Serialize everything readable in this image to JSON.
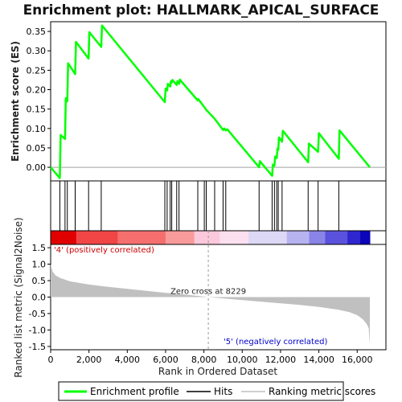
{
  "chart_data": {
    "type": "line",
    "title": "Enrichment plot: HALLMARK_APICAL_SURFACE",
    "colors": {
      "profile": "#00ff00",
      "hits": "#000000",
      "metric_fill": "#c0c0c0",
      "positive": "#ff0000",
      "negative": "#0000ff",
      "zero_line": "#a0a0a0"
    },
    "es_panel": {
      "ylabel": "Enrichment score (ES)",
      "ylim": [
        -0.035,
        0.375
      ],
      "yticks": [
        0.0,
        0.05,
        0.1,
        0.15,
        0.2,
        0.25,
        0.3,
        0.35
      ],
      "ytick_labels": [
        "0.00",
        "0.05",
        "0.10",
        "0.15",
        "0.20",
        "0.25",
        "0.30",
        "0.35"
      ],
      "grid": false,
      "points": [
        [
          0,
          0.0
        ],
        [
          480,
          -0.028
        ],
        [
          520,
          0.083
        ],
        [
          750,
          0.073
        ],
        [
          790,
          0.178
        ],
        [
          870,
          0.17
        ],
        [
          910,
          0.268
        ],
        [
          1280,
          0.24
        ],
        [
          1320,
          0.323
        ],
        [
          1980,
          0.28
        ],
        [
          2020,
          0.348
        ],
        [
          2640,
          0.31
        ],
        [
          2680,
          0.365
        ],
        [
          5960,
          0.168
        ],
        [
          6000,
          0.203
        ],
        [
          6080,
          0.198
        ],
        [
          6120,
          0.215
        ],
        [
          6240,
          0.208
        ],
        [
          6280,
          0.222
        ],
        [
          6320,
          0.218
        ],
        [
          6360,
          0.225
        ],
        [
          6580,
          0.212
        ],
        [
          6620,
          0.222
        ],
        [
          6700,
          0.215
        ],
        [
          6740,
          0.226
        ],
        [
          7680,
          0.172
        ],
        [
          7700,
          0.176
        ],
        [
          8020,
          0.155
        ],
        [
          8120,
          0.148
        ],
        [
          8560,
          0.125
        ],
        [
          9000,
          0.096
        ],
        [
          9060,
          0.1
        ],
        [
          9140,
          0.095
        ],
        [
          9220,
          0.098
        ],
        [
          10880,
          0.0
        ],
        [
          10920,
          0.016
        ],
        [
          11560,
          -0.022
        ],
        [
          11600,
          0.007
        ],
        [
          11680,
          0.004
        ],
        [
          11720,
          0.028
        ],
        [
          11800,
          0.024
        ],
        [
          11840,
          0.048
        ],
        [
          11880,
          0.045
        ],
        [
          11920,
          0.077
        ],
        [
          12080,
          0.066
        ],
        [
          12120,
          0.094
        ],
        [
          13440,
          0.013
        ],
        [
          13480,
          0.061
        ],
        [
          13960,
          0.04
        ],
        [
          14000,
          0.088
        ],
        [
          15040,
          0.022
        ],
        [
          15080,
          0.095
        ],
        [
          16660,
          0.0
        ]
      ]
    },
    "hits": [
      480,
      750,
      870,
      1280,
      1980,
      2640,
      5960,
      6080,
      6240,
      6320,
      6580,
      6700,
      7680,
      8020,
      8120,
      8560,
      9000,
      9140,
      10880,
      11560,
      11680,
      11800,
      11880,
      12080,
      13440,
      13960,
      15040
    ],
    "color_bar": {
      "segments": [
        {
          "to": 0.08,
          "color": "#e00000"
        },
        {
          "to": 0.21,
          "color": "#f04646"
        },
        {
          "to": 0.36,
          "color": "#f56f6f"
        },
        {
          "to": 0.45,
          "color": "#fa9b9b"
        },
        {
          "to": 0.53,
          "color": "#fcc8dc"
        },
        {
          "to": 0.62,
          "color": "#fde0f0"
        },
        {
          "to": 0.74,
          "color": "#dcd8f5"
        },
        {
          "to": 0.81,
          "color": "#b7b3f0"
        },
        {
          "to": 0.86,
          "color": "#8a84e6"
        },
        {
          "to": 0.93,
          "color": "#5a52dc"
        },
        {
          "to": 0.97,
          "color": "#2f26cf"
        },
        {
          "to": 1.0,
          "color": "#0b04b8"
        }
      ]
    },
    "metric_panel": {
      "ylabel": "Ranked list metric (Signal2Noise)",
      "ylim": [
        -1.6,
        1.6
      ],
      "yticks": [
        -1.5,
        -1.0,
        -0.5,
        0.0,
        0.5,
        1.0,
        1.5
      ],
      "ytick_labels": [
        "-1.5",
        "-1.0",
        "-0.5",
        "0.0",
        "0.5",
        "1.0",
        "1.5"
      ],
      "curve": [
        [
          0,
          1.0
        ],
        [
          100,
          0.78
        ],
        [
          250,
          0.66
        ],
        [
          500,
          0.58
        ],
        [
          1000,
          0.48
        ],
        [
          2000,
          0.38
        ],
        [
          3000,
          0.31
        ],
        [
          4000,
          0.25
        ],
        [
          5000,
          0.19
        ],
        [
          6000,
          0.13
        ],
        [
          7000,
          0.08
        ],
        [
          8229,
          0.0
        ],
        [
          9000,
          -0.04
        ],
        [
          10000,
          -0.09
        ],
        [
          11000,
          -0.14
        ],
        [
          12000,
          -0.19
        ],
        [
          13000,
          -0.24
        ],
        [
          14000,
          -0.3
        ],
        [
          15000,
          -0.38
        ],
        [
          15600,
          -0.46
        ],
        [
          16000,
          -0.55
        ],
        [
          16300,
          -0.68
        ],
        [
          16500,
          -0.82
        ],
        [
          16600,
          -0.95
        ],
        [
          16660,
          -1.45
        ]
      ],
      "zero_cross": 8229,
      "zero_cross_label": "Zero cross at 8229",
      "positive_label": "'4' (positively correlated)",
      "negative_label": "'5' (negatively correlated)"
    },
    "x_axis": {
      "xlabel": "Rank in Ordered Dataset",
      "xlim": [
        0,
        17500
      ],
      "xticks": [
        0,
        2000,
        4000,
        6000,
        8000,
        10000,
        12000,
        14000,
        16000
      ],
      "xtick_labels": [
        "0",
        "2,000",
        "4,000",
        "6,000",
        "8,000",
        "10,000",
        "12,000",
        "14,000",
        "16,000"
      ],
      "n_genes": 16660
    },
    "legend": {
      "position": "bottom",
      "entries": [
        "Enrichment profile",
        "Hits",
        "Ranking metric scores"
      ]
    }
  }
}
